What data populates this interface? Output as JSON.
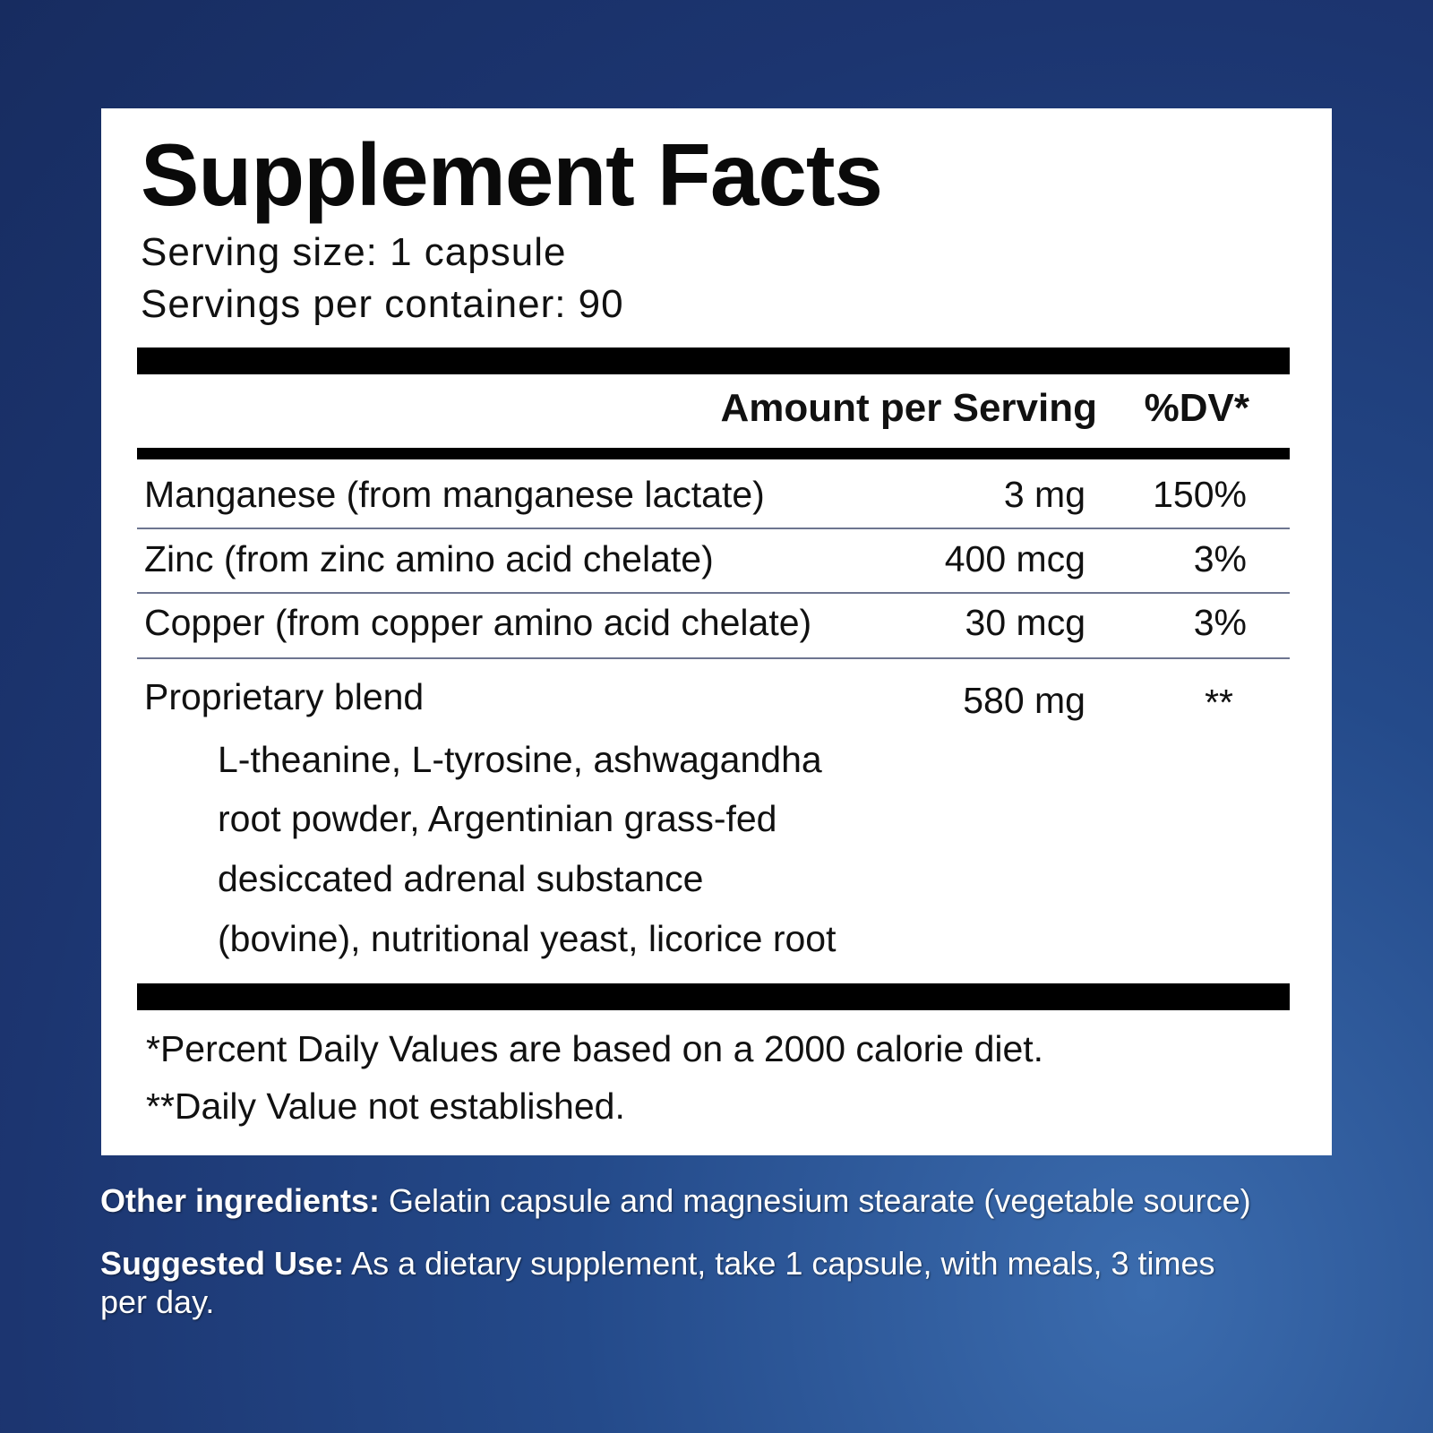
{
  "title": "Supplement Facts",
  "serving_size": "Serving size: 1 capsule",
  "servings_per_container": "Servings per container: 90",
  "header": {
    "amount": "Amount per Serving",
    "dv": "%DV*"
  },
  "rows": [
    {
      "name": "Manganese (from manganese lactate)",
      "amount": "3 mg",
      "dv": "150%"
    },
    {
      "name": "Zinc (from zinc amino acid chelate)",
      "amount": "400 mcg",
      "dv": "3%"
    },
    {
      "name": "Copper (from copper amino acid chelate)",
      "amount": "30 mcg",
      "dv": "3%"
    },
    {
      "name": "Proprietary blend",
      "amount": "580 mg",
      "dv": "**"
    }
  ],
  "blend_lines": [
    "L-theanine, L-tyrosine, ashwagandha",
    "root powder, Argentinian grass-fed",
    "desiccated adrenal substance",
    "(bovine), nutritional yeast, licorice root"
  ],
  "footnotes": [
    "*Percent Daily Values are based on a 2000 calorie diet.",
    "**Daily Value not established."
  ],
  "other_ingredients": {
    "label": "Other ingredients:",
    "text": " Gelatin capsule and magnesium stearate (vegetable source)"
  },
  "suggested_use": {
    "label": "Suggested Use:",
    "text": " As a dietary supplement, take 1 capsule, with meals, 3 times",
    "text2": "per day."
  }
}
